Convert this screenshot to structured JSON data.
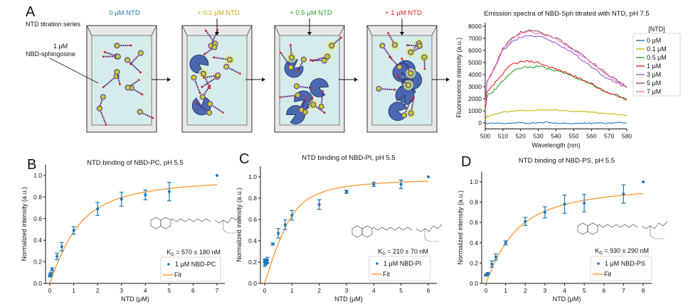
{
  "panelA": {
    "letter": "A",
    "series_label": "NTD titration series",
    "probe_label_line1": "1 μM",
    "probe_label_line2": "NBD-sphingosine",
    "steps": [
      {
        "label": "0 μM NTD",
        "color": "#1f77b4",
        "proteins": 0
      },
      {
        "label": "+ 0.1 μM NTD",
        "color": "#c8a800",
        "proteins": 2
      },
      {
        "label": "+ 0.5 μM NTD",
        "color": "#2ca02c",
        "proteins": 4
      },
      {
        "label": "+ 1 μM NTD",
        "color": "#e8211d",
        "proteins": 7
      }
    ]
  },
  "chart_data": [
    {
      "id": "spectra",
      "type": "line",
      "title": "Emission spectra of NBD-Sph titrated with NTD, pH 7.5",
      "xlabel": "Wavelength (nm)",
      "ylabel": "Fluorescence intensity (a.u.)",
      "xlim": [
        500,
        580
      ],
      "ylim": [
        -500,
        8000
      ],
      "xticks": [
        500,
        510,
        520,
        530,
        540,
        550,
        560,
        570,
        580
      ],
      "yticks": [
        0,
        1000,
        2000,
        3000,
        4000,
        5000,
        6000,
        7000,
        8000
      ],
      "legend_title": "[NTD]",
      "legend_position": "right",
      "x": [
        500,
        501,
        505,
        510,
        515,
        520,
        525,
        530,
        535,
        540,
        545,
        550,
        555,
        560,
        565,
        570,
        575,
        580
      ],
      "series": [
        {
          "name": "0 μM",
          "color": "#1f77b4",
          "values": [
            0,
            -20,
            -30,
            -40,
            -20,
            20,
            -20,
            10,
            60,
            -40,
            -30,
            -80,
            -20,
            -30,
            0,
            -40,
            50,
            -30
          ]
        },
        {
          "name": "0.1 μM",
          "color": "#c8b400",
          "values": [
            250,
            550,
            700,
            900,
            950,
            1050,
            1000,
            1100,
            1080,
            1050,
            1020,
            950,
            930,
            900,
            800,
            750,
            700,
            620
          ]
        },
        {
          "name": "0.5 μM",
          "color": "#2ca02c",
          "values": [
            1000,
            2200,
            2700,
            3500,
            4200,
            4550,
            4600,
            4700,
            4500,
            4300,
            4150,
            3800,
            3500,
            3200,
            2800,
            2500,
            2300,
            1950
          ]
        },
        {
          "name": "1 μM",
          "color": "#e8211d",
          "values": [
            1200,
            2500,
            3200,
            4100,
            4850,
            5050,
            5100,
            5000,
            4700,
            4450,
            4200,
            3900,
            3550,
            3250,
            2800,
            2400,
            2200,
            1900
          ]
        },
        {
          "name": "3 μM",
          "color": "#9b59d0",
          "values": [
            1500,
            3400,
            4400,
            6000,
            6700,
            7100,
            7250,
            7150,
            6950,
            6600,
            6200,
            5700,
            5200,
            4700,
            4100,
            3600,
            3300,
            2900
          ]
        },
        {
          "name": "5 μM",
          "color": "#8c564b",
          "values": [
            1500,
            3400,
            4500,
            6200,
            7000,
            7500,
            7700,
            7650,
            7250,
            7050,
            6600,
            6100,
            5600,
            5050,
            4500,
            3900,
            3500,
            3000
          ]
        },
        {
          "name": "7 μM",
          "color": "#ff6ec7",
          "values": [
            1500,
            3400,
            4500,
            6100,
            6900,
            7400,
            7550,
            7400,
            7200,
            7000,
            6500,
            6050,
            5500,
            5000,
            4400,
            3850,
            3400,
            2900
          ]
        }
      ]
    },
    {
      "id": "B",
      "letter": "B",
      "type": "scatter",
      "title": "NTD binding of NBD-PC, pH 5.5",
      "xlabel": "NTD (μM)",
      "ylabel": "Normalized intensity (a.u.)",
      "xlim": [
        -0.1,
        7.3
      ],
      "ylim": [
        0,
        1.1
      ],
      "xticks": [
        0,
        1,
        2,
        3,
        4,
        5,
        6,
        7
      ],
      "yticks": [
        0.0,
        0.2,
        0.4,
        0.6,
        0.8,
        1.0
      ],
      "kd_label": "K",
      "kd_sub": "D",
      "kd_value": " = 570 ± 180 nM",
      "legend": {
        "points": "1 μM NBD-PC",
        "fit": "Fit",
        "position": "lower-right"
      },
      "points": {
        "x": [
          0,
          0.03,
          0.05,
          0.1,
          0.3,
          0.5,
          1,
          2,
          3,
          4,
          5,
          7
        ],
        "y": [
          0.07,
          0.08,
          0.09,
          0.13,
          0.25,
          0.34,
          0.49,
          0.69,
          0.78,
          0.82,
          0.85,
          1.0
        ],
        "err": [
          0.01,
          0.015,
          0.01,
          0.015,
          0.03,
          0.04,
          0.035,
          0.06,
          0.065,
          0.045,
          0.085,
          0
        ]
      },
      "fit": {
        "Kd": 0.57,
        "Bmax": 1.0,
        "P": 1.0
      },
      "point_color": "#1f77b4",
      "fit_color": "#ff8c1a"
    },
    {
      "id": "C",
      "letter": "C",
      "type": "scatter",
      "title": "NTD binding of NBD-PI, pH 5.5",
      "xlabel": "NTD (μM)",
      "ylabel": "Normalized intensity (a.u.)",
      "xlim": [
        -0.1,
        6.3
      ],
      "ylim": [
        0,
        1.1
      ],
      "xticks": [
        0,
        1,
        2,
        3,
        4,
        5,
        6
      ],
      "yticks": [
        0.0,
        0.2,
        0.4,
        0.6,
        0.8,
        1.0
      ],
      "kd_label": "K",
      "kd_sub": "D",
      "kd_value": " = 210 ± 70 nM",
      "legend": {
        "points": "1 μM NBD-PI",
        "fit": "Fit",
        "position": "lower-right"
      },
      "points": {
        "x": [
          0,
          0.01,
          0.03,
          0.05,
          0.08,
          0.1,
          0.3,
          0.5,
          0.75,
          1,
          2,
          3,
          4,
          5,
          6
        ],
        "y": [
          0.21,
          0.18,
          0.19,
          0.21,
          0.2,
          0.22,
          0.37,
          0.47,
          0.55,
          0.64,
          0.74,
          0.86,
          0.93,
          0.93,
          1.0
        ],
        "err": [
          0.015,
          0.02,
          0.015,
          0.02,
          0.015,
          0.025,
          0.01,
          0.045,
          0.045,
          0.045,
          0.045,
          0.015,
          0.02,
          0.04,
          0
        ]
      },
      "fit": {
        "Kd": 0.21,
        "Bmax": 1.0,
        "P": 1.0
      },
      "point_color": "#1f77b4",
      "fit_color": "#ff8c1a"
    },
    {
      "id": "D",
      "letter": "D",
      "type": "scatter",
      "title": "NTD binding of NBD-PS, pH 5.5",
      "xlabel": "NTD (μM)",
      "ylabel": "Normalized intensity (a.u.)",
      "xlim": [
        -0.1,
        8.4
      ],
      "ylim": [
        0,
        1.1
      ],
      "xticks": [
        0,
        1,
        2,
        3,
        4,
        5,
        6,
        7,
        8
      ],
      "yticks": [
        0.0,
        0.2,
        0.4,
        0.6,
        0.8,
        1.0
      ],
      "kd_label": "K",
      "kd_sub": "D",
      "kd_value": " = 930 ± 290 nM",
      "legend": {
        "points": "1 μM NBD-PS",
        "fit": "Fit",
        "position": "lower-right"
      },
      "points": {
        "x": [
          0,
          0.03,
          0.05,
          0.08,
          0.1,
          0.3,
          0.5,
          1,
          2,
          3,
          4,
          5,
          7,
          8
        ],
        "y": [
          0.08,
          0.08,
          0.09,
          0.09,
          0.1,
          0.19,
          0.26,
          0.4,
          0.61,
          0.7,
          0.78,
          0.79,
          0.88,
          1.0
        ],
        "err": [
          0.005,
          0.005,
          0.005,
          0.005,
          0.005,
          0.03,
          0.03,
          0.02,
          0.04,
          0.055,
          0.09,
          0.085,
          0.09,
          0
        ]
      },
      "fit": {
        "Kd": 0.93,
        "Bmax": 1.0,
        "P": 1.0
      },
      "point_color": "#1f77b4",
      "fit_color": "#ff8c1a"
    }
  ]
}
